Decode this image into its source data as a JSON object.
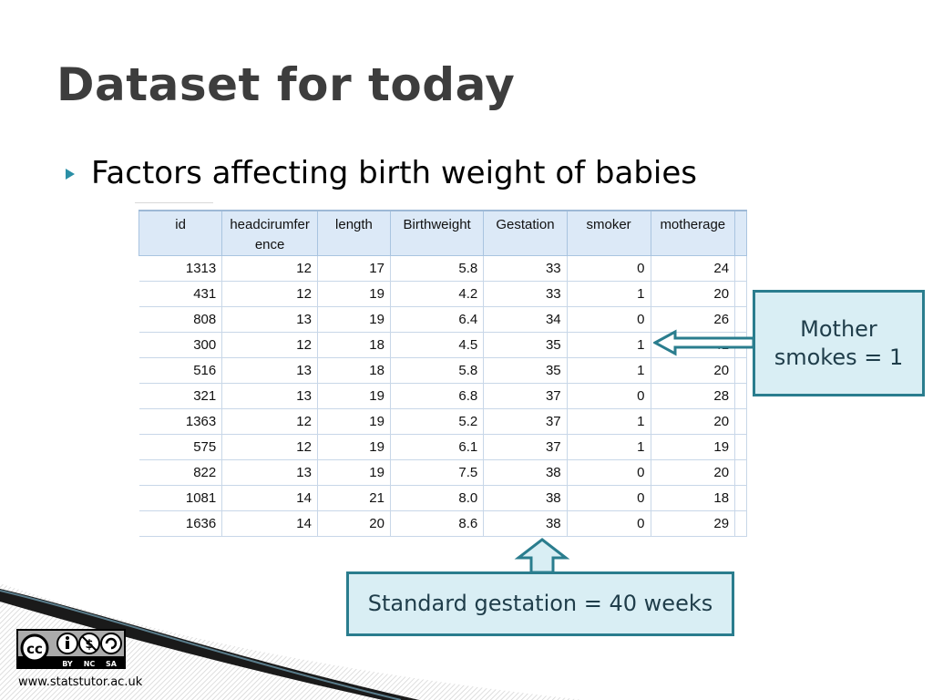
{
  "slide": {
    "title": "Dataset for today",
    "bullet": "Factors affecting birth weight of babies"
  },
  "table": {
    "headers": [
      "id",
      "headcirumfer ence",
      "length",
      "Birthweight",
      "Gestation",
      "smoker",
      "motherage"
    ],
    "rows": [
      [
        "1313",
        "12",
        "17",
        "5.8",
        "33",
        "0",
        "24"
      ],
      [
        "431",
        "12",
        "19",
        "4.2",
        "33",
        "1",
        "20"
      ],
      [
        "808",
        "13",
        "19",
        "6.4",
        "34",
        "0",
        "26"
      ],
      [
        "300",
        "12",
        "18",
        "4.5",
        "35",
        "1",
        "41"
      ],
      [
        "516",
        "13",
        "18",
        "5.8",
        "35",
        "1",
        "20"
      ],
      [
        "321",
        "13",
        "19",
        "6.8",
        "37",
        "0",
        "28"
      ],
      [
        "1363",
        "12",
        "19",
        "5.2",
        "37",
        "1",
        "20"
      ],
      [
        "575",
        "12",
        "19",
        "6.1",
        "37",
        "1",
        "19"
      ],
      [
        "822",
        "13",
        "19",
        "7.5",
        "38",
        "0",
        "20"
      ],
      [
        "1081",
        "14",
        "21",
        "8.0",
        "38",
        "0",
        "18"
      ],
      [
        "1636",
        "14",
        "20",
        "8.6",
        "38",
        "0",
        "29"
      ]
    ]
  },
  "callouts": {
    "mother_line1": "Mother",
    "mother_line2": "smokes = 1",
    "gestation": "Standard gestation = 40 weeks"
  },
  "license": {
    "badge_cc": "cc",
    "badge_terms": [
      "BY",
      "NC",
      "SA"
    ]
  },
  "footer": {
    "url": "www.statstutor.ac.uk"
  },
  "colors": {
    "accent": "#2a7d8e",
    "callout_fill": "#d9eef4",
    "header_fill": "#dce9f7"
  }
}
